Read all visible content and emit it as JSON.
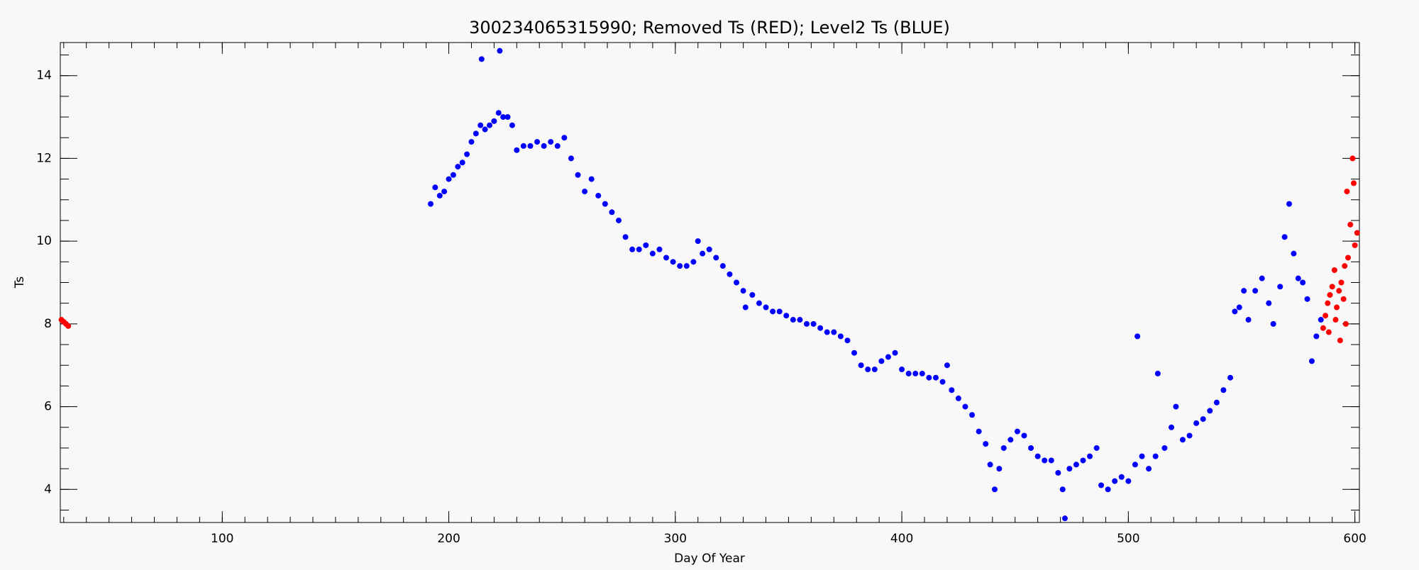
{
  "chart_data": {
    "type": "scatter",
    "title": "300234065315990; Removed Ts (RED); Level2 Ts (BLUE)",
    "x_label": "Day Of Year",
    "y_label": "Ts",
    "xlim": [
      28.5,
      602
    ],
    "ylim": [
      3.2,
      14.8
    ],
    "xticks": [
      100,
      200,
      300,
      400,
      500,
      600
    ],
    "yticks": [
      4,
      6,
      8,
      10,
      12,
      14
    ],
    "series": [
      {
        "color": "#0000ff",
        "x": [
          192,
          194,
          196,
          198,
          200,
          202,
          204,
          206,
          208,
          210,
          212,
          214,
          214.5,
          216,
          218,
          220,
          222,
          222.5,
          224,
          226,
          228,
          230,
          233,
          236,
          239,
          242,
          245,
          248,
          251,
          254,
          257,
          260,
          263,
          266,
          269,
          272,
          275,
          278,
          281,
          284,
          287,
          290,
          293,
          296,
          299,
          302,
          305,
          308,
          310,
          312,
          315,
          318,
          321,
          324,
          327,
          330,
          331,
          334,
          337,
          340,
          343,
          346,
          349,
          352,
          355,
          358,
          361,
          364,
          367,
          370,
          373,
          376,
          379,
          382,
          385,
          388,
          391,
          394,
          397,
          400,
          403,
          406,
          409,
          412,
          415,
          418,
          420,
          422,
          425,
          428,
          431,
          434,
          437,
          439,
          441,
          443,
          445,
          448,
          451,
          454,
          457,
          460,
          463,
          466,
          469,
          471,
          472,
          474,
          477,
          480,
          483,
          486,
          488,
          491,
          494,
          497,
          500,
          503,
          504,
          506,
          509,
          512,
          513,
          516,
          519,
          521,
          524,
          527,
          530,
          533,
          536,
          539,
          542,
          545,
          547,
          549,
          551,
          553,
          556,
          559,
          562,
          564,
          567,
          569,
          571,
          573,
          575,
          577,
          579,
          581,
          583,
          585
        ],
        "values": [
          10.9,
          11.3,
          11.1,
          11.2,
          11.5,
          11.6,
          11.8,
          11.9,
          12.1,
          12.4,
          12.6,
          12.8,
          14.4,
          12.7,
          12.8,
          12.9,
          13.1,
          14.6,
          13.0,
          13.0,
          12.8,
          12.2,
          12.3,
          12.3,
          12.4,
          12.3,
          12.4,
          12.3,
          12.5,
          12.0,
          11.6,
          11.2,
          11.5,
          11.1,
          10.9,
          10.7,
          10.5,
          10.1,
          9.8,
          9.8,
          9.9,
          9.7,
          9.8,
          9.6,
          9.5,
          9.4,
          9.4,
          9.5,
          10.0,
          9.7,
          9.8,
          9.6,
          9.4,
          9.2,
          9.0,
          8.8,
          8.4,
          8.7,
          8.5,
          8.4,
          8.3,
          8.3,
          8.2,
          8.1,
          8.1,
          8.0,
          8.0,
          7.9,
          7.8,
          7.8,
          7.7,
          7.6,
          7.3,
          7.0,
          6.9,
          6.9,
          7.1,
          7.2,
          7.3,
          6.9,
          6.8,
          6.8,
          6.8,
          6.7,
          6.7,
          6.6,
          7.0,
          6.4,
          6.2,
          6.0,
          5.8,
          5.4,
          5.1,
          4.6,
          4.0,
          4.5,
          5.0,
          5.2,
          5.4,
          5.3,
          5.0,
          4.8,
          4.7,
          4.7,
          4.4,
          4.0,
          3.3,
          4.5,
          4.6,
          4.7,
          4.8,
          5.0,
          4.1,
          4.0,
          4.2,
          4.3,
          4.2,
          4.6,
          7.7,
          4.8,
          4.5,
          4.8,
          6.8,
          5.0,
          5.5,
          6.0,
          5.2,
          5.3,
          5.6,
          5.7,
          5.9,
          6.1,
          6.4,
          6.7,
          8.3,
          8.4,
          8.8,
          8.1,
          8.8,
          9.1,
          8.5,
          8.0,
          8.9,
          10.1,
          10.9,
          9.7,
          9.1,
          9.0,
          8.6,
          7.1,
          7.7,
          8.1
        ]
      },
      {
        "color": "#ff0000",
        "x": [
          29,
          30,
          31,
          32,
          586,
          587,
          588,
          588.5,
          589,
          590,
          591,
          591.5,
          592,
          593,
          593.5,
          594,
          595,
          595.5,
          596,
          596.5,
          597,
          598,
          599,
          599.5,
          600,
          601
        ],
        "values": [
          8.1,
          8.05,
          8.0,
          7.95,
          7.9,
          8.2,
          8.5,
          7.8,
          8.7,
          8.9,
          9.3,
          8.1,
          8.4,
          8.8,
          7.6,
          9.0,
          8.6,
          9.4,
          8.0,
          11.2,
          9.6,
          10.4,
          12.0,
          11.4,
          9.9,
          10.2
        ]
      }
    ]
  }
}
